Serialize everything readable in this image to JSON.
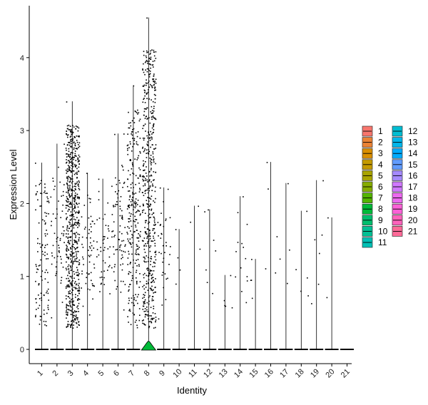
{
  "chart_data": {
    "type": "violin",
    "xlabel": "Identity",
    "ylabel": "Expression Level",
    "ylim": [
      -0.2,
      4.72
    ],
    "yticks": [
      0,
      1,
      2,
      3,
      4
    ],
    "categories": [
      "1",
      "2",
      "3",
      "4",
      "5",
      "6",
      "7",
      "8",
      "9",
      "10",
      "11",
      "12",
      "13",
      "14",
      "15",
      "16",
      "17",
      "18",
      "19",
      "20",
      "21"
    ],
    "colors": [
      "#F8766D",
      "#EB8335",
      "#DA8F00",
      "#C49A00",
      "#A9A400",
      "#86AC00",
      "#53B400",
      "#00BA38",
      "#00BE6D",
      "#00C094",
      "#00C0B5",
      "#00BDD2",
      "#00B6EB",
      "#00ABFD",
      "#619CFF",
      "#A58AFF",
      "#D078FF",
      "#EC69EF",
      "#FB61D7",
      "#FF62BC",
      "#FF6A98"
    ],
    "max_values": [
      2.56,
      2.82,
      3.4,
      2.42,
      2.34,
      2.96,
      3.62,
      4.55,
      2.22,
      1.65,
      1.97,
      1.92,
      1.02,
      2.1,
      1.24,
      2.57,
      2.28,
      1.9,
      2.32,
      1.81,
      0.0
    ],
    "point_counts": [
      110,
      60,
      650,
      60,
      45,
      80,
      260,
      520,
      35,
      4,
      3,
      7,
      5,
      14,
      4,
      5,
      4,
      5,
      6,
      2,
      0
    ],
    "legend": {
      "placement": "right",
      "items": [
        "1",
        "2",
        "3",
        "4",
        "5",
        "6",
        "7",
        "8",
        "9",
        "10",
        "11",
        "12",
        "13",
        "14",
        "15",
        "16",
        "17",
        "18",
        "19",
        "20",
        "21"
      ]
    }
  }
}
